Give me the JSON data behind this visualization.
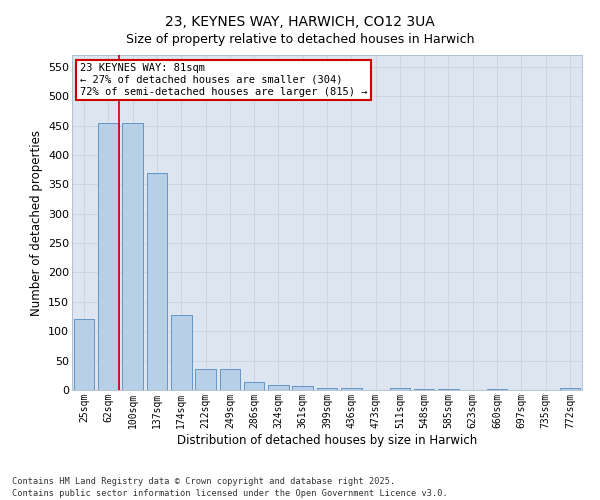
{
  "title": "23, KEYNES WAY, HARWICH, CO12 3UA",
  "subtitle": "Size of property relative to detached houses in Harwich",
  "xlabel": "Distribution of detached houses by size in Harwich",
  "ylabel": "Number of detached properties",
  "categories": [
    "25sqm",
    "62sqm",
    "100sqm",
    "137sqm",
    "174sqm",
    "212sqm",
    "249sqm",
    "286sqm",
    "324sqm",
    "361sqm",
    "399sqm",
    "436sqm",
    "473sqm",
    "511sqm",
    "548sqm",
    "585sqm",
    "623sqm",
    "660sqm",
    "697sqm",
    "735sqm",
    "772sqm"
  ],
  "values": [
    120,
    455,
    455,
    370,
    128,
    35,
    35,
    13,
    8,
    6,
    3,
    3,
    0,
    3,
    1,
    1,
    0,
    1,
    0,
    0,
    3
  ],
  "bar_color": "#b8cfe8",
  "bar_edge_color": "#6494c8",
  "red_line_x": 1.43,
  "annotation_text": "23 KEYNES WAY: 81sqm\n← 27% of detached houses are smaller (304)\n72% of semi-detached houses are larger (815) →",
  "annotation_box_color": "#ffffff",
  "annotation_box_edge": "#cc0000",
  "red_line_color": "#cc0000",
  "grid_color": "#ccd5e0",
  "bg_color": "#dce5f0",
  "footer": "Contains HM Land Registry data © Crown copyright and database right 2025.\nContains public sector information licensed under the Open Government Licence v3.0.",
  "ylim": [
    0,
    570
  ],
  "yticks": [
    0,
    50,
    100,
    150,
    200,
    250,
    300,
    350,
    400,
    450,
    500,
    550
  ]
}
